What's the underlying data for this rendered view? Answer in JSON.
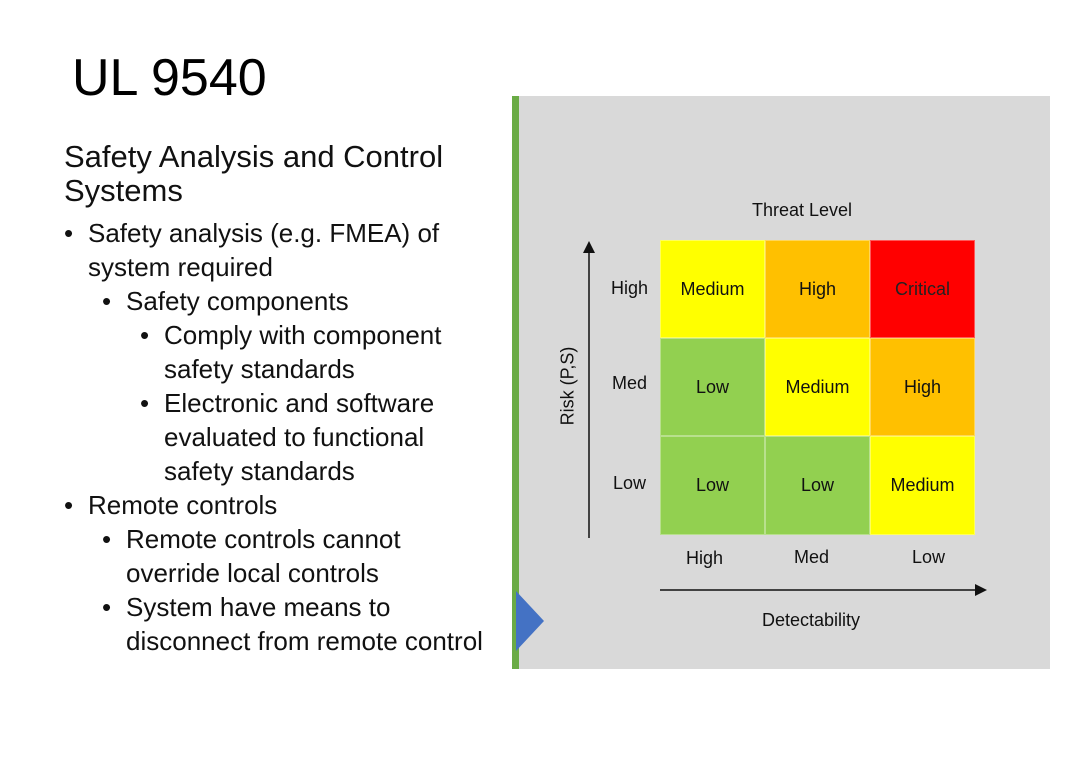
{
  "title": "UL 9540",
  "subtitle": "Safety Analysis and Control Systems",
  "bullets": [
    {
      "level": 1,
      "text": "Safety analysis (e.g. FMEA) of system required"
    },
    {
      "level": 2,
      "text": "Safety components"
    },
    {
      "level": 3,
      "text": "Comply with component safety standards"
    },
    {
      "level": 3,
      "text": "Electronic and software evaluated to functional safety standards"
    },
    {
      "level": 1,
      "text": "Remote controls"
    },
    {
      "level": 2,
      "text": "Remote controls cannot override local controls"
    },
    {
      "level": 2,
      "text": "System have means to disconnect from remote control"
    }
  ],
  "bullet_glyph": "•",
  "matrix": {
    "title": "Threat Level",
    "y_axis_title": "Risk (P,S)",
    "x_axis_title": "Detectability",
    "row_labels": [
      "High",
      "Med",
      "Low"
    ],
    "col_labels": [
      "High",
      "Med",
      "Low"
    ],
    "cells": [
      [
        {
          "label": "Medium",
          "color": "#ffff00",
          "text_color": "#111111"
        },
        {
          "label": "High",
          "color": "#ffc000",
          "text_color": "#111111"
        },
        {
          "label": "Critical",
          "color": "#ff0000",
          "text_color": "#222222"
        }
      ],
      [
        {
          "label": "Low",
          "color": "#92d050",
          "text_color": "#111111"
        },
        {
          "label": "Medium",
          "color": "#ffff00",
          "text_color": "#111111"
        },
        {
          "label": "High",
          "color": "#ffc000",
          "text_color": "#111111"
        }
      ],
      [
        {
          "label": "Low",
          "color": "#92d050",
          "text_color": "#111111"
        },
        {
          "label": "Low",
          "color": "#92d050",
          "text_color": "#111111"
        },
        {
          "label": "Medium",
          "color": "#ffff00",
          "text_color": "#111111"
        }
      ]
    ]
  },
  "colors": {
    "panel_background": "#d9d9d9",
    "panel_accent": "#6aab45",
    "panel_marker": "#4472c4"
  }
}
